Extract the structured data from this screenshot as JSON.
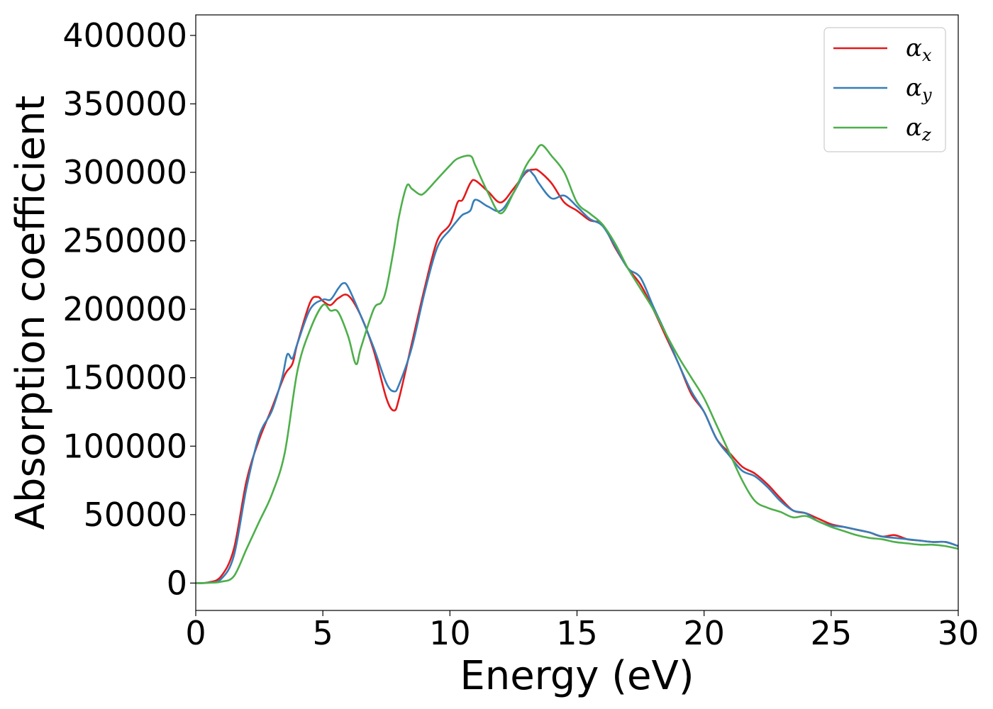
{
  "chart_data": {
    "type": "line",
    "xlabel": "Energy (eV)",
    "ylabel": "Absorption coefficient",
    "xlim": [
      0,
      30
    ],
    "ylim": [
      -20000,
      415000
    ],
    "xticks": [
      0,
      5,
      10,
      15,
      20,
      25,
      30
    ],
    "yticks": [
      0,
      50000,
      100000,
      150000,
      200000,
      250000,
      300000,
      350000,
      400000
    ],
    "grid": false,
    "legend_position": "top-right",
    "series": [
      {
        "name": "αx",
        "label_base": "α",
        "label_sub": "x",
        "color": "#e41a1c",
        "x": [
          0,
          0.5,
          1.0,
          1.5,
          2.0,
          2.5,
          3.0,
          3.5,
          3.8,
          4.0,
          4.5,
          4.8,
          5.0,
          5.3,
          5.6,
          6.0,
          6.5,
          7.0,
          7.5,
          7.8,
          8.0,
          8.5,
          9.0,
          9.5,
          10.0,
          10.3,
          10.5,
          10.8,
          11.0,
          11.5,
          12.0,
          12.5,
          13.0,
          13.3,
          13.5,
          14.0,
          14.5,
          15.0,
          15.5,
          16.0,
          16.5,
          17.0,
          17.5,
          18.0,
          18.5,
          19.0,
          19.5,
          20.0,
          20.5,
          21.0,
          21.5,
          22.0,
          22.5,
          23.0,
          23.5,
          24.0,
          24.5,
          25.0,
          25.5,
          26.0,
          26.5,
          27.0,
          27.5,
          28.0,
          28.5,
          29.0,
          29.5,
          30.0
        ],
        "y": [
          0,
          500,
          5000,
          25000,
          75000,
          105000,
          128000,
          152000,
          160000,
          175000,
          205000,
          209000,
          206000,
          203000,
          208000,
          210000,
          195000,
          170000,
          135000,
          126000,
          135000,
          175000,
          215000,
          250000,
          262000,
          278000,
          280000,
          292000,
          294000,
          286000,
          278000,
          288000,
          300000,
          302000,
          301000,
          292000,
          278000,
          272000,
          265000,
          262000,
          245000,
          230000,
          218000,
          200000,
          180000,
          160000,
          138000,
          125000,
          105000,
          95000,
          85000,
          80000,
          72000,
          62000,
          53000,
          51000,
          47000,
          43000,
          41000,
          39000,
          37000,
          34000,
          35000,
          32000,
          31000,
          30000,
          30000,
          27000
        ]
      },
      {
        "name": "αy",
        "label_base": "α",
        "label_sub": "y",
        "color": "#377eb8",
        "x": [
          0,
          0.5,
          1.0,
          1.5,
          2.0,
          2.5,
          3.0,
          3.4,
          3.6,
          3.8,
          4.0,
          4.5,
          5.0,
          5.3,
          5.6,
          5.8,
          6.0,
          6.5,
          7.0,
          7.5,
          7.8,
          8.0,
          8.5,
          9.0,
          9.5,
          10.0,
          10.3,
          10.5,
          10.8,
          11.0,
          11.5,
          12.0,
          12.5,
          13.0,
          13.3,
          13.5,
          14.0,
          14.5,
          15.0,
          15.5,
          16.0,
          16.5,
          17.0,
          17.5,
          18.0,
          18.5,
          19.0,
          19.5,
          20.0,
          20.5,
          21.0,
          21.5,
          22.0,
          22.5,
          23.0,
          23.5,
          24.0,
          24.5,
          25.0,
          25.5,
          26.0,
          26.5,
          27.0,
          27.5,
          28.0,
          28.5,
          29.0,
          29.5,
          30.0
        ],
        "y": [
          0,
          300,
          3000,
          20000,
          70000,
          108000,
          126000,
          150000,
          167000,
          164000,
          175000,
          200000,
          207000,
          207000,
          215000,
          219000,
          216000,
          195000,
          172000,
          146000,
          140000,
          145000,
          172000,
          212000,
          245000,
          258000,
          265000,
          269000,
          272000,
          280000,
          275000,
          272000,
          285000,
          301000,
          298000,
          292000,
          281000,
          283000,
          275000,
          266000,
          261000,
          246000,
          230000,
          223000,
          202000,
          182000,
          160000,
          140000,
          125000,
          105000,
          93000,
          82000,
          78000,
          70000,
          60000,
          53000,
          51000,
          45000,
          42000,
          41000,
          39000,
          37000,
          34000,
          33000,
          32000,
          31000,
          30000,
          30000,
          27000
        ]
      },
      {
        "name": "αz",
        "label_base": "α",
        "label_sub": "z",
        "color": "#4daf4a",
        "x": [
          0,
          0.5,
          1.0,
          1.5,
          2.0,
          2.5,
          3.0,
          3.5,
          4.0,
          4.5,
          5.0,
          5.3,
          5.6,
          6.0,
          6.3,
          6.5,
          7.0,
          7.3,
          7.5,
          7.8,
          8.0,
          8.3,
          8.5,
          8.8,
          9.0,
          9.5,
          10.0,
          10.3,
          10.8,
          11.0,
          11.5,
          12.0,
          12.5,
          13.0,
          13.3,
          13.6,
          14.0,
          14.5,
          15.0,
          15.5,
          16.0,
          16.5,
          17.0,
          17.5,
          18.0,
          18.5,
          19.0,
          19.5,
          20.0,
          20.5,
          21.0,
          21.5,
          22.0,
          22.5,
          23.0,
          23.5,
          24.0,
          24.5,
          25.0,
          25.5,
          26.0,
          26.5,
          27.0,
          27.5,
          28.0,
          28.5,
          29.0,
          29.5,
          30.0
        ],
        "y": [
          0,
          200,
          1000,
          5000,
          25000,
          45000,
          65000,
          95000,
          155000,
          185000,
          203000,
          199000,
          198000,
          180000,
          160000,
          172000,
          200000,
          205000,
          215000,
          245000,
          268000,
          290000,
          288000,
          284000,
          285000,
          295000,
          305000,
          310000,
          312000,
          305000,
          285000,
          270000,
          285000,
          305000,
          313000,
          320000,
          312000,
          300000,
          278000,
          270000,
          262000,
          248000,
          230000,
          215000,
          200000,
          182000,
          165000,
          150000,
          135000,
          115000,
          95000,
          75000,
          60000,
          55000,
          52000,
          48000,
          49000,
          45000,
          41000,
          38000,
          35000,
          33000,
          32000,
          30000,
          29000,
          28000,
          28000,
          27000,
          25000
        ]
      }
    ]
  }
}
